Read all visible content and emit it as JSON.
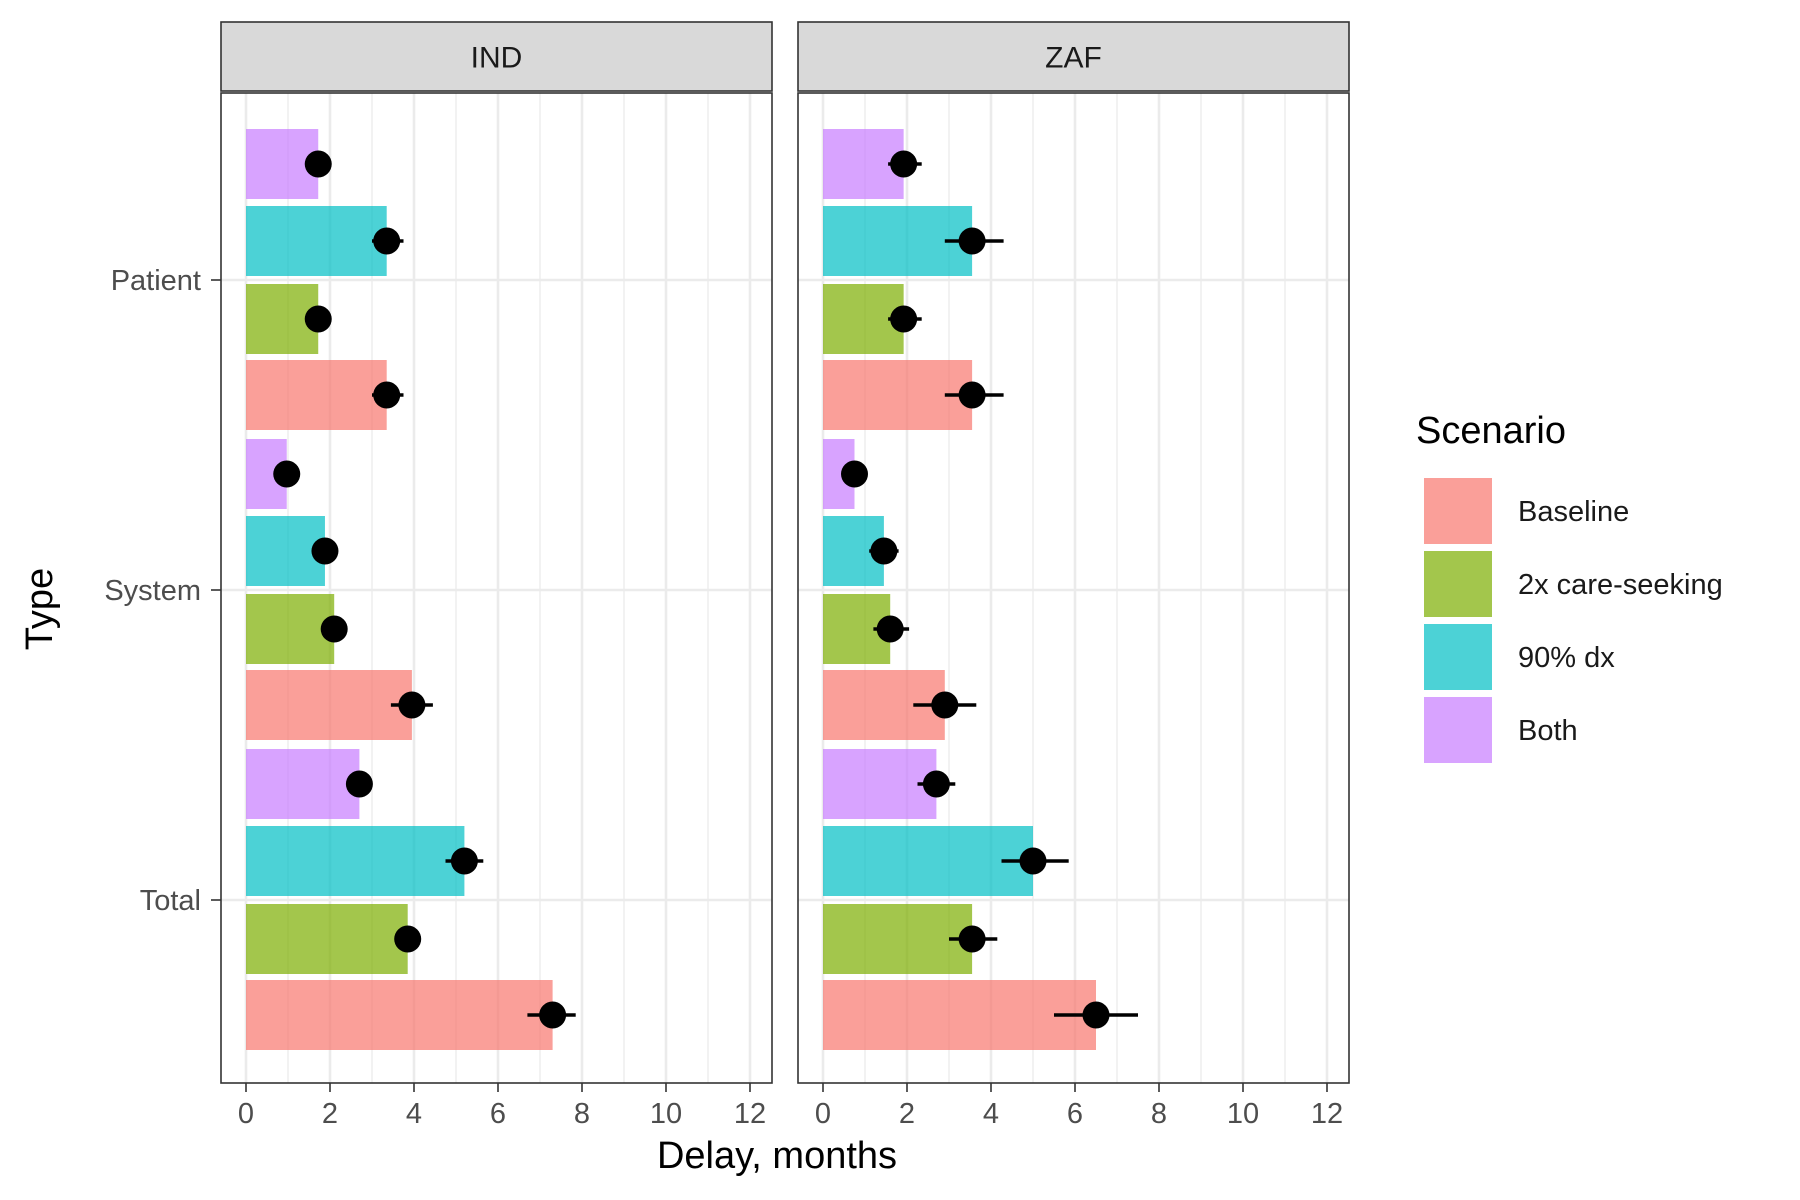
{
  "chart_data": {
    "type": "bar",
    "orientation": "horizontal",
    "facets": [
      "IND",
      "ZAF"
    ],
    "categories": [
      "Patient",
      "System",
      "Total"
    ],
    "xlabel": "Delay, months",
    "ylabel": "Type",
    "xlim": [
      0,
      12
    ],
    "xticks": [
      0,
      2,
      4,
      6,
      8,
      10,
      12
    ],
    "grid": true,
    "legend": {
      "title": "Scenario",
      "position": "right",
      "entries": [
        "Baseline",
        "2x care-seeking",
        "90% dx",
        "Both"
      ]
    },
    "colors": {
      "Baseline": "#F8766D",
      "2x care-seeking": "#7CAE00",
      "90% dx": "#00BFC4",
      "Both": "#C77CFF"
    },
    "panels": [
      {
        "facet": "IND",
        "series": [
          {
            "name": "Baseline",
            "values": [
              3.35,
              3.95,
              7.3
            ],
            "lower": [
              3.0,
              3.45,
              6.7
            ],
            "upper": [
              3.75,
              4.45,
              7.85
            ]
          },
          {
            "name": "2x care-seeking",
            "values": [
              1.72,
              2.1,
              3.85
            ],
            "lower": [
              1.72,
              2.1,
              3.85
            ],
            "upper": [
              1.72,
              2.1,
              3.85
            ]
          },
          {
            "name": "90% dx",
            "values": [
              3.35,
              1.88,
              5.2
            ],
            "lower": [
              3.0,
              1.88,
              4.75
            ],
            "upper": [
              3.75,
              1.88,
              5.65
            ]
          },
          {
            "name": "Both",
            "values": [
              1.72,
              0.97,
              2.7
            ],
            "lower": [
              1.72,
              0.97,
              2.7
            ],
            "upper": [
              1.72,
              0.97,
              2.7
            ]
          }
        ]
      },
      {
        "facet": "ZAF",
        "series": [
          {
            "name": "Baseline",
            "values": [
              3.55,
              2.9,
              6.5
            ],
            "lower": [
              2.9,
              2.15,
              5.5
            ],
            "upper": [
              4.3,
              3.65,
              7.5
            ]
          },
          {
            "name": "2x care-seeking",
            "values": [
              1.92,
              1.6,
              3.55
            ],
            "lower": [
              1.55,
              1.2,
              3.0
            ],
            "upper": [
              2.35,
              2.05,
              4.15
            ]
          },
          {
            "name": "90% dx",
            "values": [
              3.55,
              1.45,
              5.0
            ],
            "lower": [
              2.9,
              1.1,
              4.25
            ],
            "upper": [
              4.3,
              1.8,
              5.85
            ]
          },
          {
            "name": "Both",
            "values": [
              1.92,
              0.75,
              2.7
            ],
            "lower": [
              1.55,
              0.75,
              2.25
            ],
            "upper": [
              2.35,
              0.75,
              3.15
            ]
          }
        ]
      }
    ]
  }
}
